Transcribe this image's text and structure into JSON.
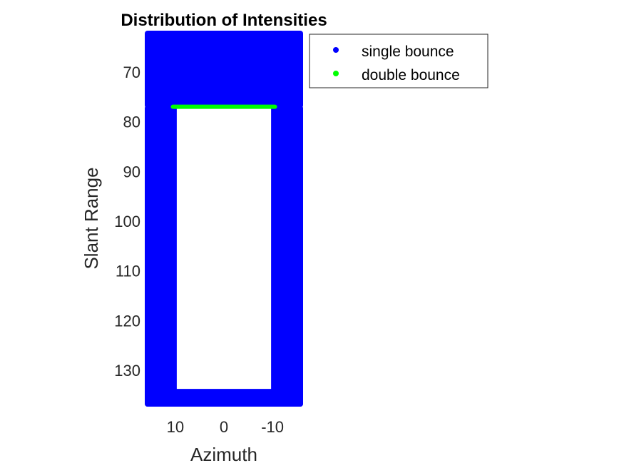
{
  "chart_data": {
    "type": "scatter",
    "title": "Distribution of Intensities",
    "xlabel": "Azimuth",
    "ylabel": "Slant Range",
    "xlim": [
      16,
      -16
    ],
    "ylim": [
      62,
      137
    ],
    "x_reversed": true,
    "y_reversed": true,
    "xticks": [
      10,
      0,
      -10
    ],
    "yticks": [
      70,
      80,
      90,
      100,
      110,
      120,
      130
    ],
    "legend_position": "outside-top-right",
    "series": [
      {
        "name": "single bounce",
        "color": "#0000ff",
        "marker": "dot",
        "regions": [
          {
            "x": [
              -16,
              16
            ],
            "y": [
              62,
              77
            ]
          },
          {
            "x": [
              10,
              16
            ],
            "y": [
              77,
              137
            ]
          },
          {
            "x": [
              -16,
              -10
            ],
            "y": [
              77,
              137
            ]
          },
          {
            "x": [
              -16,
              16
            ],
            "y": [
              134,
              137
            ]
          }
        ]
      },
      {
        "name": "double bounce",
        "color": "#00ff00",
        "marker": "dot",
        "line": {
          "x": [
            10.5,
            -10.5
          ],
          "y": 77
        }
      }
    ]
  }
}
